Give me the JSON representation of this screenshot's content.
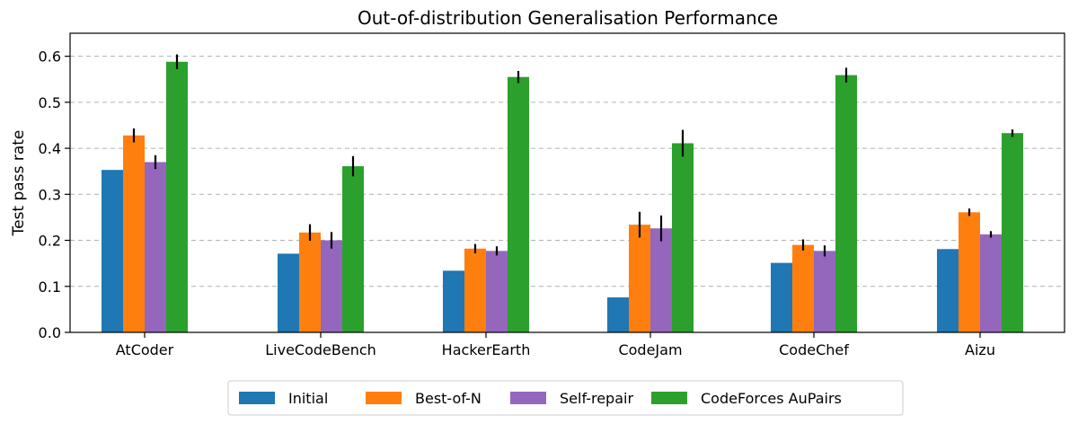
{
  "chart_data": {
    "type": "bar",
    "title": "Out-of-distribution Generalisation Performance",
    "xlabel": "",
    "ylabel": "Test pass rate",
    "ylim": [
      0,
      0.65
    ],
    "yticks": [
      "0.0",
      "0.1",
      "0.2",
      "0.3",
      "0.4",
      "0.5",
      "0.6"
    ],
    "grid": "horizontal dashed",
    "legend_position": "bottom-center",
    "categories": [
      "AtCoder",
      "LiveCodeBench",
      "HackerEarth",
      "CodeJam",
      "CodeChef",
      "Aizu"
    ],
    "series": [
      {
        "name": "Initial",
        "color": "#1f77b4",
        "values": [
          0.353,
          0.171,
          0.134,
          0.076,
          0.151,
          0.181
        ],
        "errors": [
          null,
          null,
          null,
          null,
          null,
          null
        ]
      },
      {
        "name": "Best-of-N",
        "color": "#ff7f0e",
        "values": [
          0.428,
          0.217,
          0.182,
          0.234,
          0.19,
          0.261
        ],
        "errors": [
          0.015,
          0.018,
          0.01,
          0.028,
          0.012,
          0.008
        ]
      },
      {
        "name": "Self-repair",
        "color": "#9467bd",
        "values": [
          0.37,
          0.2,
          0.177,
          0.226,
          0.177,
          0.213
        ],
        "errors": [
          0.015,
          0.018,
          0.01,
          0.028,
          0.012,
          0.007
        ]
      },
      {
        "name": "CodeForces AuPairs",
        "color": "#2ca02c",
        "values": [
          0.588,
          0.361,
          0.555,
          0.411,
          0.559,
          0.433
        ],
        "errors": [
          0.016,
          0.022,
          0.013,
          0.029,
          0.016,
          0.008
        ]
      }
    ]
  }
}
